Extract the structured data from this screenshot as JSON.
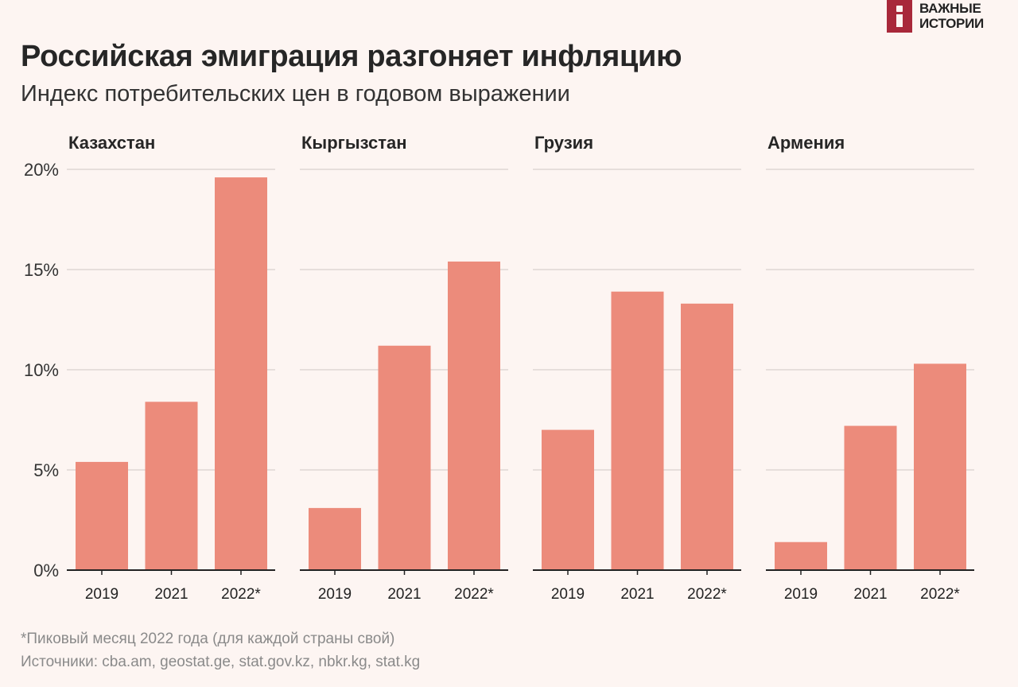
{
  "header": {
    "title": "Российская эмиграция разгоняет инфляцию",
    "subtitle": "Индекс потребительских цен в годовом выражении"
  },
  "logo": {
    "line1": "ВАЖНЫЕ",
    "line2": "ИСТОРИИ",
    "color": "#a8283a"
  },
  "footer": {
    "note": "*Пиковый месяц 2022 года (для каждой страны свой)",
    "sources": "Источники: cba.am, geostat.ge, stat.gov.kz, nbkr.kg, stat.kg"
  },
  "chart_data": {
    "type": "bar",
    "categories": [
      "2019",
      "2021",
      "2022*"
    ],
    "y_ticks": [
      "0%",
      "5%",
      "10%",
      "15%",
      "20%"
    ],
    "y_tick_values": [
      0,
      5,
      10,
      15,
      20
    ],
    "ylim": [
      0,
      20
    ],
    "unit": "%",
    "grid": true,
    "bar_color": "#ec8b7b",
    "panels": [
      {
        "name": "Казахстан",
        "values": [
          5.4,
          8.4,
          19.6
        ]
      },
      {
        "name": "Кыргызстан",
        "values": [
          3.1,
          11.2,
          15.4
        ]
      },
      {
        "name": "Грузия",
        "values": [
          7.0,
          13.9,
          13.3
        ]
      },
      {
        "name": "Армения",
        "values": [
          1.4,
          7.2,
          10.3
        ]
      }
    ]
  }
}
